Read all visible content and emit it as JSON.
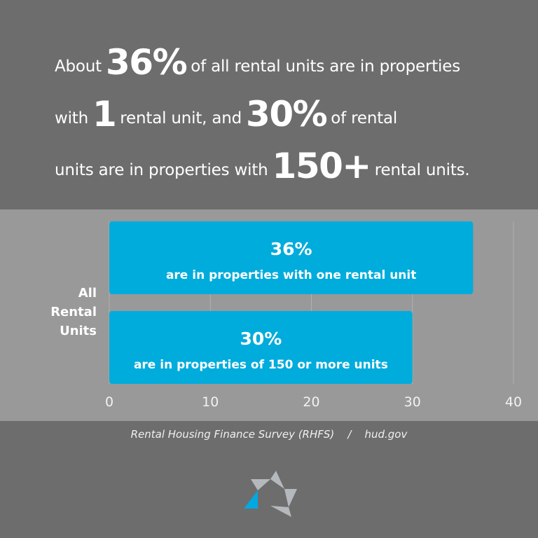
{
  "headline": {
    "l1a": "About",
    "l1b": "36%",
    "l1c": "of all rental units are in properties",
    "l2a": "with",
    "l2b": "1",
    "l2c": "rental unit, and",
    "l2d": "30%",
    "l2e": "of rental",
    "l3a": "units are in properties with",
    "l3b": "150+",
    "l3c": "rental units."
  },
  "chart_data": {
    "type": "bar",
    "orientation": "horizontal",
    "category_label": [
      "All",
      "Rental",
      "Units"
    ],
    "bars": [
      {
        "value": 36,
        "label": "36%",
        "sublabel": "are in properties with one rental unit"
      },
      {
        "value": 30,
        "label": "30%",
        "sublabel": "are in properties of 150 or more units"
      }
    ],
    "xlim": [
      0,
      40
    ],
    "xticks": [
      0,
      10,
      20,
      30,
      40
    ],
    "grid": true,
    "colors": {
      "bar": "#00acdc",
      "background": "#999999",
      "grid": "#b0b0b0"
    }
  },
  "source": {
    "survey": "Rental Housing Finance Survey (RHFS)",
    "sep": "/",
    "site": "hud.gov"
  },
  "logo": {
    "name": "hud-star-logo",
    "colors": [
      "#b5b8bc",
      "#00a9e0"
    ]
  }
}
